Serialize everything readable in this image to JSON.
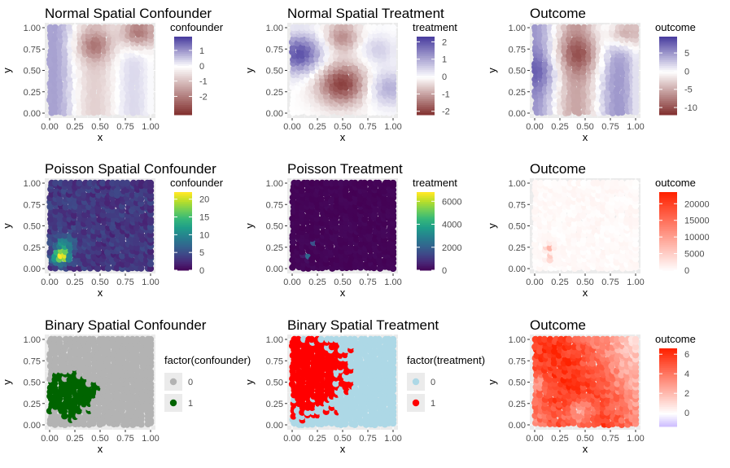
{
  "chart_data": [
    {
      "type": "scatter",
      "title": "Normal Spatial Confounder",
      "xlabel": "x",
      "ylabel": "y",
      "xlim": [
        0,
        1
      ],
      "ylim": [
        0,
        1
      ],
      "xticks": [
        "0.00",
        "0.25",
        "0.50",
        "0.75",
        "1.00"
      ],
      "yticks": [
        "0.00",
        "0.25",
        "0.50",
        "0.75",
        "1.00"
      ],
      "fill": "continuous-diverging",
      "field": "confounder",
      "range": [
        -3.2,
        1.9
      ],
      "colors": {
        "low": "#7f2b2a",
        "mid": "#ffffff",
        "high": "#4b3fa0"
      },
      "legend": {
        "title": "confounder",
        "labels": [
          "1",
          "0",
          "-1",
          "-2"
        ],
        "values": [
          1,
          0,
          -1,
          -2
        ]
      },
      "grid": true,
      "legend_position": "right"
    },
    {
      "type": "scatter",
      "title": "Normal Spatial Treatment",
      "xlabel": "x",
      "ylabel": "y",
      "xlim": [
        0,
        1
      ],
      "ylim": [
        0,
        1
      ],
      "xticks": [
        "0.00",
        "0.25",
        "0.50",
        "0.75",
        "1.00"
      ],
      "yticks": [
        "0.00",
        "0.25",
        "0.50",
        "0.75",
        "1.00"
      ],
      "fill": "continuous-diverging",
      "field": "treatment",
      "range": [
        -2.2,
        2.3
      ],
      "colors": {
        "low": "#7f2b2a",
        "mid": "#ffffff",
        "high": "#4b3fa0"
      },
      "legend": {
        "title": "treatment",
        "labels": [
          "2",
          "1",
          "0",
          "-1",
          "-2"
        ],
        "values": [
          2,
          1,
          0,
          -1,
          -2
        ]
      },
      "grid": true,
      "legend_position": "right"
    },
    {
      "type": "scatter",
      "title": "Outcome",
      "xlabel": "x",
      "ylabel": "y",
      "xlim": [
        0,
        1
      ],
      "ylim": [
        0,
        1
      ],
      "xticks": [
        "0.00",
        "0.25",
        "0.50",
        "0.75",
        "1.00"
      ],
      "yticks": [
        "0.00",
        "0.25",
        "0.50",
        "0.75",
        "1.00"
      ],
      "fill": "continuous-diverging",
      "field": "outcome",
      "range": [
        -12,
        9.5
      ],
      "colors": {
        "low": "#7f2b2a",
        "mid": "#ffffff",
        "high": "#4b3fa0"
      },
      "legend": {
        "title": "outcome",
        "labels": [
          "5",
          "0",
          "-5",
          "-10"
        ],
        "values": [
          5,
          0,
          -5,
          -10
        ]
      },
      "grid": true,
      "legend_position": "right"
    },
    {
      "type": "scatter",
      "title": "Poisson Spatial Confounder",
      "xlabel": "x",
      "ylabel": "y",
      "xlim": [
        0,
        1
      ],
      "ylim": [
        0,
        1
      ],
      "xticks": [
        "0.00",
        "0.25",
        "0.50",
        "0.75",
        "1.00"
      ],
      "yticks": [
        "0.00",
        "0.25",
        "0.50",
        "0.75",
        "1.00"
      ],
      "fill": "continuous-viridis",
      "field": "confounder",
      "range": [
        0,
        22
      ],
      "colors": {
        "low": "#440154",
        "high": "#fde725"
      },
      "legend": {
        "title": "confounder",
        "labels": [
          "20",
          "15",
          "10",
          "5",
          "0"
        ],
        "values": [
          20,
          15,
          10,
          5,
          0
        ]
      },
      "grid": true,
      "legend_position": "right"
    },
    {
      "type": "scatter",
      "title": "Poisson Treatment",
      "xlabel": "x",
      "ylabel": "y",
      "xlim": [
        0,
        1
      ],
      "ylim": [
        0,
        1
      ],
      "xticks": [
        "0.00",
        "0.25",
        "0.50",
        "0.75",
        "1.00"
      ],
      "yticks": [
        "0.00",
        "0.25",
        "0.50",
        "0.75",
        "1.00"
      ],
      "fill": "continuous-viridis",
      "field": "treatment",
      "range": [
        0,
        6800
      ],
      "colors": {
        "low": "#440154",
        "high": "#fde725"
      },
      "legend": {
        "title": "treatment",
        "labels": [
          "6000",
          "4000",
          "2000",
          "0"
        ],
        "values": [
          6000,
          4000,
          2000,
          0
        ]
      },
      "grid": true,
      "legend_position": "right"
    },
    {
      "type": "scatter",
      "title": "Outcome",
      "xlabel": "x",
      "ylabel": "y",
      "xlim": [
        0,
        1
      ],
      "ylim": [
        0,
        1
      ],
      "xticks": [
        "0.00",
        "0.25",
        "0.50",
        "0.75",
        "1.00"
      ],
      "yticks": [
        "0.00",
        "0.25",
        "0.50",
        "0.75",
        "1.00"
      ],
      "fill": "continuous-sequential",
      "field": "outcome",
      "range": [
        0,
        23500
      ],
      "colors": {
        "low": "#ffffff",
        "high": "#ff2200"
      },
      "legend": {
        "title": "outcome",
        "labels": [
          "20000",
          "15000",
          "10000",
          "5000",
          "0"
        ],
        "values": [
          20000,
          15000,
          10000,
          5000,
          0
        ]
      },
      "grid": true,
      "legend_position": "right"
    },
    {
      "type": "scatter",
      "title": "Binary Spatial Confounder",
      "xlabel": "x",
      "ylabel": "y",
      "xlim": [
        0,
        1
      ],
      "ylim": [
        0,
        1
      ],
      "xticks": [
        "0.00",
        "0.25",
        "0.50",
        "0.75",
        "1.00"
      ],
      "yticks": [
        "0.00",
        "0.25",
        "0.50",
        "0.75",
        "1.00"
      ],
      "fill": "discrete",
      "field": "factor(confounder)",
      "legend": {
        "title": "factor(confounder)",
        "labels": [
          "0",
          "1"
        ],
        "colors": [
          "#b3b3b3",
          "#006400"
        ]
      },
      "grid": true,
      "legend_position": "right"
    },
    {
      "type": "scatter",
      "title": "Binary Spatial Treatment",
      "xlabel": "x",
      "ylabel": "y",
      "xlim": [
        0,
        1
      ],
      "ylim": [
        0,
        1
      ],
      "xticks": [
        "0.00",
        "0.25",
        "0.50",
        "0.75",
        "1.00"
      ],
      "yticks": [
        "0.00",
        "0.25",
        "0.50",
        "0.75",
        "1.00"
      ],
      "fill": "discrete",
      "field": "factor(treatment)",
      "legend": {
        "title": "factor(treatment)",
        "labels": [
          "0",
          "1"
        ],
        "colors": [
          "#add8e6",
          "#ff0000"
        ]
      },
      "grid": true,
      "legend_position": "right"
    },
    {
      "type": "scatter",
      "title": "Outcome",
      "xlabel": "x",
      "ylabel": "y",
      "xlim": [
        0,
        1
      ],
      "ylim": [
        0,
        1
      ],
      "xticks": [
        "0.00",
        "0.25",
        "0.50",
        "0.75",
        "1.00"
      ],
      "yticks": [
        "0.00",
        "0.25",
        "0.50",
        "0.75",
        "1.00"
      ],
      "fill": "continuous-diverging",
      "field": "outcome",
      "range": [
        -1.4,
        6.6
      ],
      "colors": {
        "low": "#c9b8ff",
        "mid": "#ffffff",
        "high": "#ff2200"
      },
      "legend": {
        "title": "outcome",
        "labels": [
          "6",
          "4",
          "2",
          "0"
        ],
        "values": [
          6,
          4,
          2,
          0
        ]
      },
      "grid": true,
      "legend_position": "right"
    }
  ]
}
